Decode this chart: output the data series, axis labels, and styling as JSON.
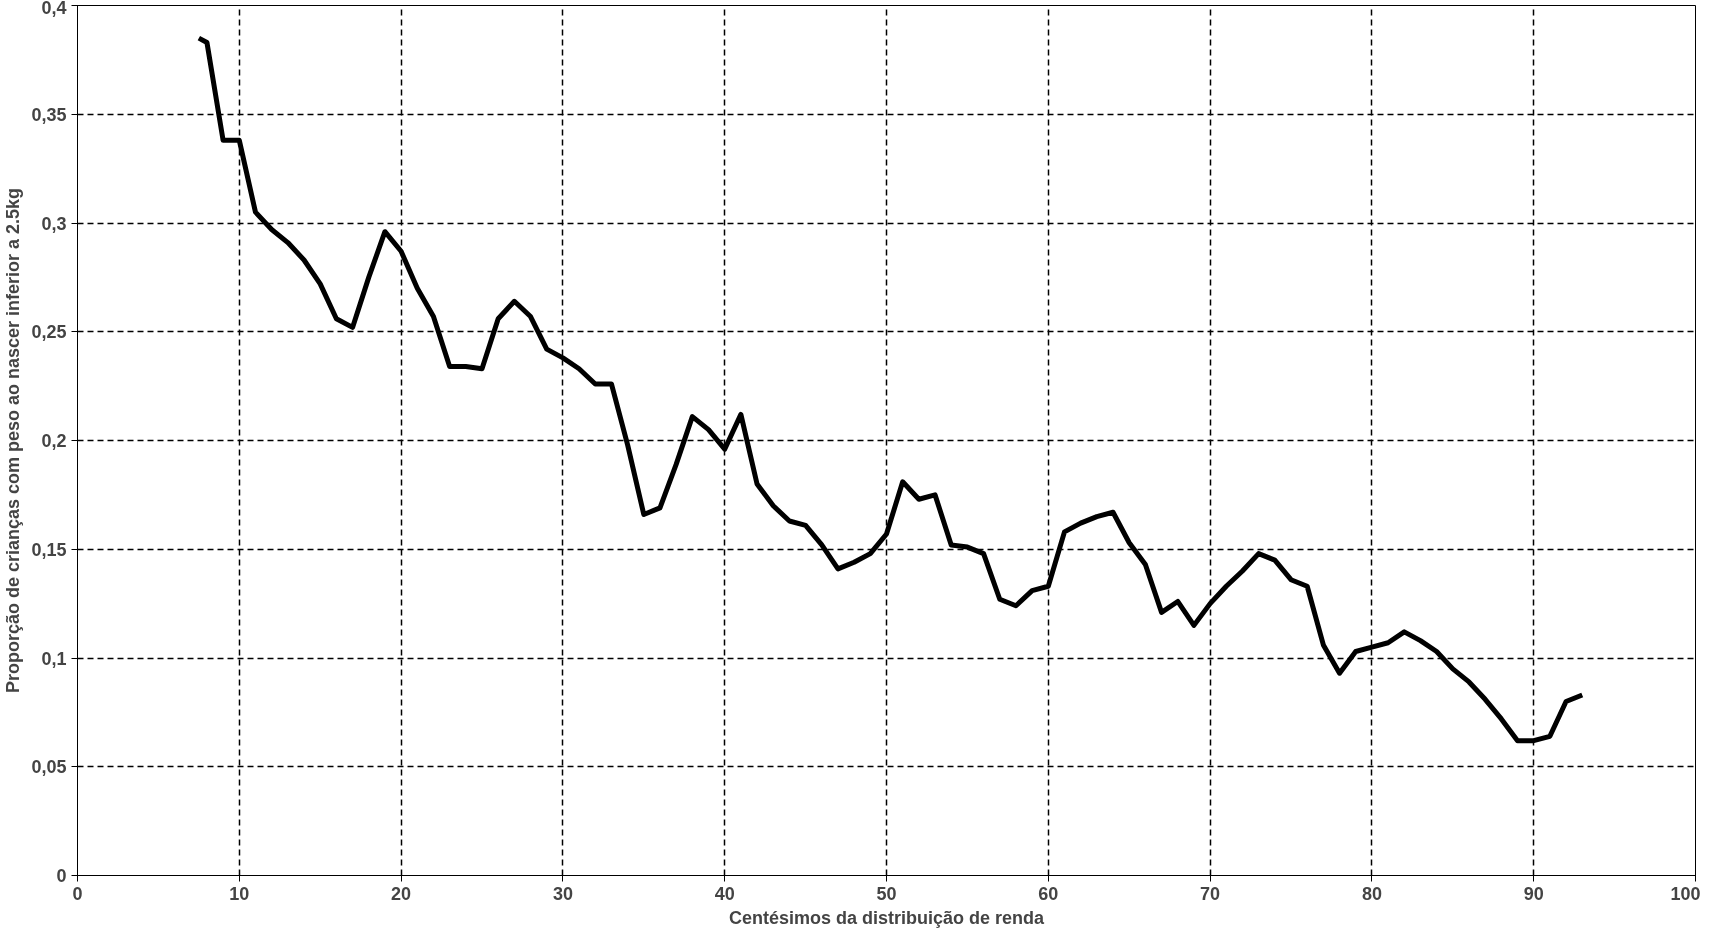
{
  "chart_data": {
    "type": "line",
    "xlabel": "Centésimos da distribuição de renda",
    "ylabel": "Proporção de crianças com peso ao nascer inferior a 2.5kg",
    "x": [
      7.5,
      8,
      9,
      10,
      11,
      12,
      13,
      14,
      15,
      16,
      17,
      18,
      19,
      20,
      21,
      22,
      23,
      24,
      25,
      26,
      27,
      28,
      29,
      30,
      31,
      32,
      33,
      34,
      35,
      36,
      37,
      38,
      39,
      40,
      41,
      42,
      43,
      44,
      45,
      46,
      47,
      48,
      49,
      50,
      51,
      52,
      53,
      54,
      55,
      56,
      57,
      58,
      59,
      60,
      61,
      62,
      63,
      64,
      65,
      66,
      67,
      68,
      69,
      70,
      71,
      72,
      73,
      74,
      75,
      76,
      77,
      78,
      79,
      80,
      81,
      82,
      83,
      84,
      85,
      86,
      87,
      88,
      89,
      90,
      91,
      92,
      93
    ],
    "series": [
      {
        "color": "#000000",
        "values": [
          0.385,
          0.383,
          0.338,
          0.338,
          0.305,
          0.297,
          0.291,
          0.283,
          0.272,
          0.256,
          0.252,
          0.275,
          0.296,
          0.287,
          0.27,
          0.257,
          0.234,
          0.234,
          0.233,
          0.256,
          0.264,
          0.257,
          0.242,
          0.238,
          0.233,
          0.226,
          0.226,
          0.198,
          0.166,
          0.169,
          0.189,
          0.211,
          0.205,
          0.196,
          0.212,
          0.18,
          0.17,
          0.163,
          0.161,
          0.152,
          0.141,
          0.144,
          0.148,
          0.157,
          0.181,
          0.173,
          0.175,
          0.152,
          0.151,
          0.148,
          0.127,
          0.124,
          0.131,
          0.133,
          0.158,
          0.162,
          0.165,
          0.167,
          0.153,
          0.143,
          0.121,
          0.126,
          0.115,
          0.125,
          0.133,
          0.14,
          0.148,
          0.145,
          0.136,
          0.133,
          0.106,
          0.093,
          0.103,
          0.105,
          0.107,
          0.112,
          0.108,
          0.103,
          0.095,
          0.089,
          0.081,
          0.072,
          0.062,
          0.062,
          0.064,
          0.08,
          0.083
        ]
      }
    ],
    "xlim": [
      0,
      100
    ],
    "xticks": [
      0,
      10,
      20,
      30,
      40,
      50,
      60,
      70,
      80,
      90,
      100
    ],
    "ylim": [
      0,
      0.4
    ],
    "yticks": [
      0,
      {
        "value": 0.05,
        "label": "0,05"
      },
      {
        "value": 0.1,
        "label": "0,1"
      },
      {
        "value": 0.15,
        "label": "0,15"
      },
      {
        "value": 0.2,
        "label": "0,2"
      },
      {
        "value": 0.25,
        "label": "0,25"
      },
      {
        "value": 0.3,
        "label": "0,3"
      },
      {
        "value": 0.35,
        "label": "0,35"
      },
      {
        "value": 0.4,
        "label": "0,4"
      }
    ],
    "grid": true,
    "marker": "none",
    "line_style": "solid"
  }
}
